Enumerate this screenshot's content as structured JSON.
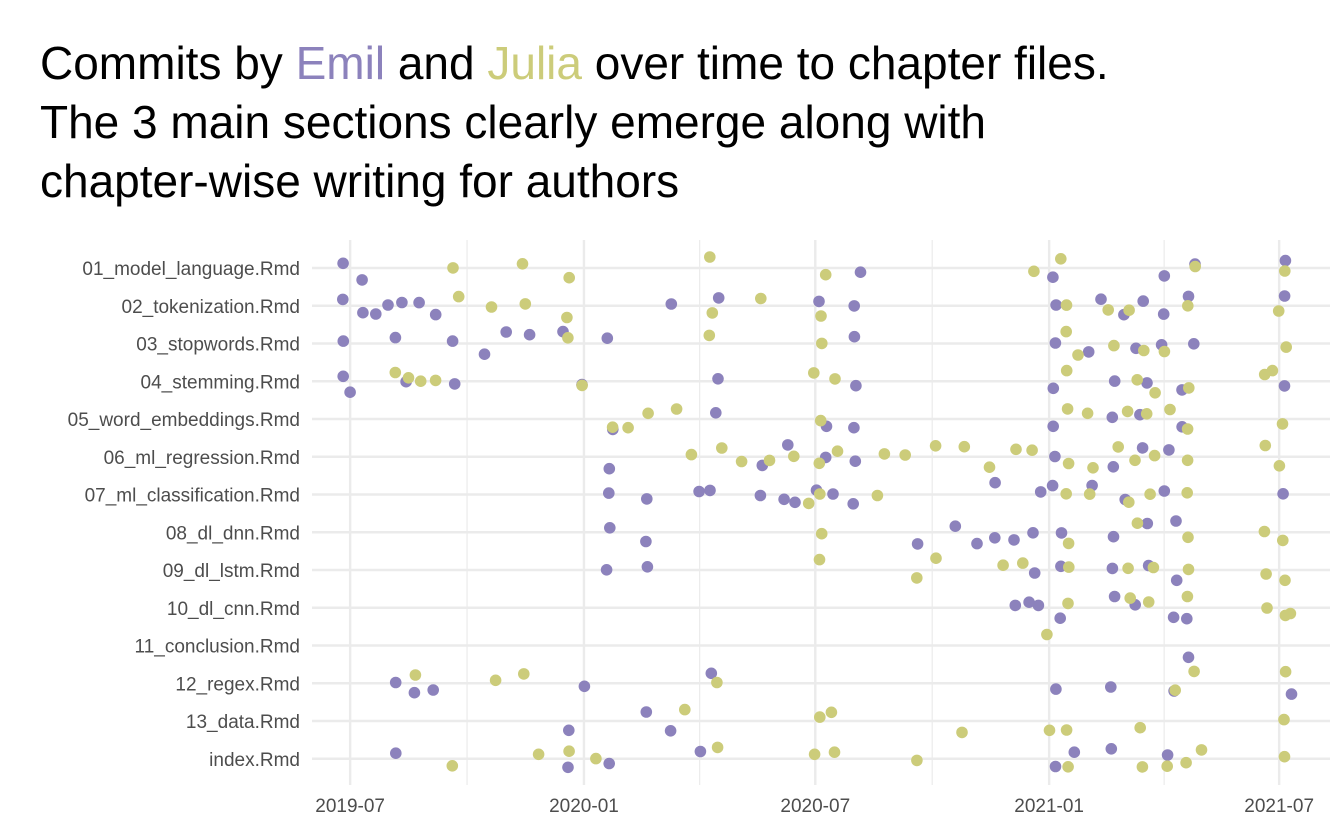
{
  "title": {
    "line1_pre": "Commits by ",
    "emil": "Emil",
    "line1_mid": " and ",
    "julia": "Julia",
    "line1_post": " over time to chapter files.",
    "line2": "The 3 main sections clearly emerge along with",
    "line3": "chapter-wise writing for authors"
  },
  "colors": {
    "emil": "#8c82bc",
    "julia": "#cccc7a",
    "grid": "#ebebeb",
    "text": "#4d4d4d"
  },
  "chart_data": {
    "type": "scatter",
    "x_type": "date",
    "xlim": [
      "2019-06-01",
      "2021-08-10"
    ],
    "x_ticks": [
      "2019-07-01",
      "2020-01-01",
      "2020-07-01",
      "2021-01-01",
      "2021-07-01"
    ],
    "x_tick_labels": [
      "2019-07",
      "2020-01",
      "2020-07",
      "2021-01",
      "2021-07"
    ],
    "categories": [
      "01_model_language.Rmd",
      "02_tokenization.Rmd",
      "03_stopwords.Rmd",
      "04_stemming.Rmd",
      "05_word_embeddings.Rmd",
      "06_ml_regression.Rmd",
      "07_ml_classification.Rmd",
      "08_dl_dnn.Rmd",
      "09_dl_lstm.Rmd",
      "10_dl_cnn.Rmd",
      "11_conclusion.Rmd",
      "12_regex.Rmd",
      "13_data.Rmd",
      "index.Rmd"
    ],
    "legend": "none",
    "grid": true,
    "series": [
      {
        "name": "Emil",
        "color": "#8c82bc",
        "points": [
          {
            "c": "01_model_language.Rmd",
            "d": [
              "2019-06-25",
              "2019-07-10",
              "2020-08-05",
              "2021-01-05",
              "2021-04-01",
              "2021-04-25",
              "2021-07-05"
            ]
          },
          {
            "c": "02_tokenization.Rmd",
            "d": [
              "2019-06-25",
              "2019-07-12",
              "2019-07-20",
              "2019-08-01",
              "2019-08-10",
              "2019-08-25",
              "2019-09-05",
              "2020-03-10",
              "2020-04-15",
              "2020-07-05",
              "2020-08-01",
              "2021-01-05",
              "2021-02-10",
              "2021-03-01",
              "2021-03-15",
              "2021-04-01",
              "2021-04-20",
              "2021-07-05"
            ]
          },
          {
            "c": "03_stopwords.Rmd",
            "d": [
              "2019-06-25",
              "2019-08-05",
              "2019-09-20",
              "2019-10-15",
              "2019-11-01",
              "2019-11-20",
              "2019-12-15",
              "2020-01-20",
              "2020-08-01",
              "2021-01-05",
              "2021-02-01",
              "2021-03-10",
              "2021-04-01",
              "2021-04-25"
            ]
          },
          {
            "c": "04_stemming.Rmd",
            "d": [
              "2019-06-25",
              "2019-07-01",
              "2019-08-15",
              "2019-09-20",
              "2020-01-01",
              "2020-04-15",
              "2020-08-01",
              "2021-01-05",
              "2021-02-20",
              "2021-03-20",
              "2021-04-15",
              "2021-07-05"
            ]
          },
          {
            "c": "05_word_embeddings.Rmd",
            "d": [
              "2020-01-25",
              "2020-04-15",
              "2020-07-10",
              "2020-08-01",
              "2021-01-05",
              "2021-02-20",
              "2021-03-15",
              "2021-04-15"
            ]
          },
          {
            "c": "06_ml_regression.Rmd",
            "d": [
              "2020-01-20",
              "2020-05-20",
              "2020-06-10",
              "2020-07-10",
              "2020-08-01",
              "2021-01-05",
              "2021-02-20",
              "2021-03-15",
              "2021-04-05"
            ]
          },
          {
            "c": "07_ml_classification.Rmd",
            "d": [
              "2020-01-20",
              "2020-02-20",
              "2020-04-01",
              "2020-04-10",
              "2020-05-20",
              "2020-06-05",
              "2020-06-15",
              "2020-07-01",
              "2020-07-15",
              "2020-08-01",
              "2020-11-20",
              "2020-12-25",
              "2021-01-05",
              "2021-02-05",
              "2021-03-01",
              "2021-04-01",
              "2021-07-05"
            ]
          },
          {
            "c": "08_dl_dnn.Rmd",
            "d": [
              "2020-01-20",
              "2020-02-20",
              "2020-09-20",
              "2020-10-20",
              "2020-11-05",
              "2020-11-20",
              "2020-12-05",
              "2020-12-20",
              "2021-01-10",
              "2021-02-20",
              "2021-03-20",
              "2021-04-10"
            ]
          },
          {
            "c": "09_dl_lstm.Rmd",
            "d": [
              "2020-01-20",
              "2020-02-20",
              "2020-12-20",
              "2021-01-10",
              "2021-02-20",
              "2021-03-20",
              "2021-04-10"
            ]
          },
          {
            "c": "10_dl_cnn.Rmd",
            "d": [
              "2020-12-05",
              "2020-12-15",
              "2020-12-25",
              "2021-01-10",
              "2021-02-20",
              "2021-03-10",
              "2021-04-10",
              "2021-04-20"
            ]
          },
          {
            "c": "11_conclusion.Rmd",
            "d": [
              "2021-04-20"
            ]
          },
          {
            "c": "12_regex.Rmd",
            "d": [
              "2019-08-05",
              "2019-08-20",
              "2019-09-05",
              "2020-01-01",
              "2020-04-10",
              "2021-01-05",
              "2021-02-20",
              "2021-04-10",
              "2021-07-10"
            ]
          },
          {
            "c": "13_data.Rmd",
            "d": [
              "2019-12-20",
              "2020-02-20",
              "2020-03-10"
            ]
          },
          {
            "c": "index.Rmd",
            "d": [
              "2019-08-05",
              "2019-12-20",
              "2020-01-20",
              "2020-04-01",
              "2021-01-05",
              "2021-01-20",
              "2021-02-20",
              "2021-04-05"
            ]
          }
        ]
      },
      {
        "name": "Julia",
        "color": "#cccc7a",
        "points": [
          {
            "c": "01_model_language.Rmd",
            "d": [
              "2019-09-20",
              "2019-11-15",
              "2019-12-20",
              "2020-04-10",
              "2020-07-10",
              "2020-12-20",
              "2021-01-10",
              "2021-04-25",
              "2021-07-05"
            ]
          },
          {
            "c": "02_tokenization.Rmd",
            "d": [
              "2019-09-25",
              "2019-10-20",
              "2019-11-15",
              "2019-12-20",
              "2020-04-10",
              "2020-05-20",
              "2020-07-05",
              "2021-01-15",
              "2021-02-15",
              "2021-03-05",
              "2021-04-20",
              "2021-06-30"
            ]
          },
          {
            "c": "03_stopwords.Rmd",
            "d": [
              "2019-12-20",
              "2020-04-10",
              "2020-07-05",
              "2021-01-15",
              "2021-01-25",
              "2021-02-20",
              "2021-03-15",
              "2021-04-01",
              "2021-07-05"
            ]
          },
          {
            "c": "04_stemming.Rmd",
            "d": [
              "2019-08-05",
              "2019-08-15",
              "2019-08-25",
              "2019-09-05",
              "2020-01-01",
              "2020-07-01",
              "2020-07-15",
              "2021-01-15",
              "2021-03-10",
              "2021-03-25",
              "2021-04-20",
              "2021-06-20",
              "2021-06-25"
            ]
          },
          {
            "c": "05_word_embeddings.Rmd",
            "d": [
              "2020-01-25",
              "2020-02-05",
              "2020-02-20",
              "2020-03-15",
              "2020-07-05",
              "2021-01-15",
              "2021-02-01",
              "2021-03-05",
              "2021-03-20",
              "2021-04-05",
              "2021-04-20",
              "2021-07-05"
            ]
          },
          {
            "c": "06_ml_regression.Rmd",
            "d": [
              "2020-03-25",
              "2020-04-20",
              "2020-05-05",
              "2020-05-25",
              "2020-06-15",
              "2020-07-05",
              "2020-07-20",
              "2020-08-25",
              "2020-09-10",
              "2020-10-05",
              "2020-10-25",
              "2020-11-15",
              "2020-12-05",
              "2020-12-20",
              "2021-01-15",
              "2021-02-05",
              "2021-02-25",
              "2021-03-10",
              "2021-03-25",
              "2021-04-20",
              "2021-06-20",
              "2021-07-01"
            ]
          },
          {
            "c": "07_ml_classification.Rmd",
            "d": [
              "2020-06-25",
              "2020-07-05",
              "2020-08-20",
              "2021-01-15",
              "2021-02-01",
              "2021-03-05",
              "2021-03-20",
              "2021-04-20"
            ]
          },
          {
            "c": "08_dl_dnn.Rmd",
            "d": [
              "2020-07-05",
              "2021-01-15",
              "2021-03-10",
              "2021-04-20",
              "2021-06-20",
              "2021-07-05"
            ]
          },
          {
            "c": "09_dl_lstm.Rmd",
            "d": [
              "2020-07-05",
              "2020-09-20",
              "2020-10-05",
              "2020-11-25",
              "2020-12-10",
              "2021-01-15",
              "2021-03-05",
              "2021-03-25",
              "2021-04-20",
              "2021-06-20",
              "2021-07-05"
            ]
          },
          {
            "c": "10_dl_cnn.Rmd",
            "d": [
              "2021-01-15",
              "2021-03-05",
              "2021-03-20",
              "2021-04-20",
              "2021-06-20",
              "2021-07-05",
              "2021-07-10"
            ]
          },
          {
            "c": "11_conclusion.Rmd",
            "d": [
              "2020-12-30"
            ]
          },
          {
            "c": "12_regex.Rmd",
            "d": [
              "2019-08-20",
              "2019-10-25",
              "2019-11-15",
              "2020-04-15",
              "2021-04-10",
              "2021-04-25",
              "2021-07-05"
            ]
          },
          {
            "c": "13_data.Rmd",
            "d": [
              "2020-03-20",
              "2020-07-05",
              "2020-07-15",
              "2020-10-25",
              "2021-01-01",
              "2021-01-15",
              "2021-03-15",
              "2021-07-05"
            ]
          },
          {
            "c": "index.Rmd",
            "d": [
              "2019-09-20",
              "2019-11-25",
              "2019-12-20",
              "2020-01-10",
              "2020-04-15",
              "2020-07-01",
              "2020-07-15",
              "2020-09-20",
              "2021-01-15",
              "2021-03-15",
              "2021-04-05",
              "2021-04-20",
              "2021-04-30",
              "2021-07-05"
            ]
          }
        ]
      }
    ]
  }
}
